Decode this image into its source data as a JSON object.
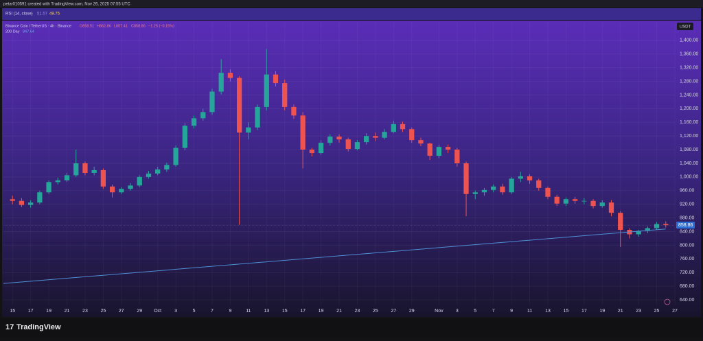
{
  "header": {
    "caption": "petar010591 created with TradingView.com, Nov 26, 2025 07:55 UTC"
  },
  "rsi": {
    "label": "RSI (14, close)",
    "value1": "51.57",
    "value2": "49.75"
  },
  "legend": {
    "symbol": "Binance Coin / TetherUS · 4h · Binance",
    "open": "O858.51",
    "high": "H862.86",
    "low": "L857.41",
    "close": "C858.86",
    "change": "−1.25 (−0.15%)"
  },
  "currency": "USDT",
  "footer": {
    "brand": "TradingView"
  },
  "chart_data": {
    "type": "candlestick",
    "up_color": "#26a69a",
    "down_color": "#ef5350",
    "x": [
      "Sep 15",
      "Sep 16",
      "Sep 17",
      "Sep 18",
      "Sep 19",
      "Sep 20",
      "Sep 21",
      "Sep 22",
      "Sep 23",
      "Sep 24",
      "Sep 25",
      "Sep 26",
      "Sep 27",
      "Sep 28",
      "Sep 29",
      "Sep 30",
      "Oct 1",
      "Oct 2",
      "Oct 3",
      "Oct 4",
      "Oct 5",
      "Oct 6",
      "Oct 7",
      "Oct 8",
      "Oct 9",
      "Oct 10",
      "Oct 11",
      "Oct 12",
      "Oct 13",
      "Oct 14",
      "Oct 15",
      "Oct 16",
      "Oct 17",
      "Oct 18",
      "Oct 19",
      "Oct 20",
      "Oct 21",
      "Oct 22",
      "Oct 23",
      "Oct 24",
      "Oct 25",
      "Oct 26",
      "Oct 27",
      "Oct 28",
      "Oct 29",
      "Oct 30",
      "Oct 31",
      "Nov 1",
      "Nov 2",
      "Nov 3",
      "Nov 4",
      "Nov 5",
      "Nov 6",
      "Nov 7",
      "Nov 8",
      "Nov 9",
      "Nov 10",
      "Nov 11",
      "Nov 12",
      "Nov 13",
      "Nov 14",
      "Nov 15",
      "Nov 16",
      "Nov 17",
      "Nov 18",
      "Nov 19",
      "Nov 20",
      "Nov 21",
      "Nov 22",
      "Nov 23",
      "Nov 24",
      "Nov 25",
      "Nov 26"
    ],
    "open": [
      935,
      930,
      918,
      925,
      955,
      985,
      990,
      1005,
      1040,
      1012,
      1020,
      972,
      955,
      965,
      975,
      1000,
      1010,
      1022,
      1035,
      1085,
      1150,
      1172,
      1190,
      1250,
      1305,
      1290,
      1130,
      1145,
      1205,
      1300,
      1275,
      1205,
      1180,
      1080,
      1070,
      1100,
      1118,
      1110,
      1082,
      1102,
      1120,
      1115,
      1132,
      1155,
      1140,
      1108,
      1098,
      1062,
      1088,
      1080,
      1040,
      950,
      955,
      962,
      972,
      955,
      995,
      1002,
      990,
      968,
      942,
      922,
      935,
      930,
      930,
      915,
      925,
      895,
      845,
      832,
      842,
      850,
      862
    ],
    "high": [
      945,
      938,
      932,
      960,
      990,
      998,
      1012,
      1080,
      1045,
      1030,
      1025,
      978,
      970,
      982,
      1005,
      1018,
      1030,
      1042,
      1092,
      1158,
      1180,
      1200,
      1258,
      1345,
      1315,
      1295,
      1160,
      1212,
      1375,
      1310,
      1285,
      1212,
      1190,
      1085,
      1108,
      1125,
      1125,
      1115,
      1108,
      1128,
      1130,
      1140,
      1165,
      1162,
      1145,
      1115,
      1100,
      1095,
      1095,
      1085,
      1045,
      960,
      968,
      978,
      980,
      1000,
      1015,
      1008,
      995,
      972,
      948,
      940,
      942,
      938,
      935,
      932,
      932,
      900,
      850,
      845,
      855,
      868,
      870
    ],
    "low": [
      920,
      912,
      910,
      920,
      950,
      978,
      985,
      1000,
      1005,
      1005,
      965,
      940,
      950,
      960,
      970,
      995,
      1005,
      1015,
      1030,
      1078,
      1142,
      1165,
      1182,
      1242,
      1280,
      860,
      1110,
      1138,
      1195,
      1265,
      1195,
      1170,
      1025,
      1060,
      1065,
      1092,
      1100,
      1075,
      1078,
      1095,
      1105,
      1110,
      1128,
      1132,
      1100,
      1090,
      1050,
      1055,
      1070,
      1030,
      885,
      935,
      945,
      955,
      948,
      950,
      985,
      980,
      960,
      935,
      915,
      915,
      922,
      920,
      908,
      910,
      885,
      795,
      820,
      825,
      835,
      845,
      852
    ],
    "close": [
      930,
      918,
      925,
      955,
      985,
      990,
      1005,
      1040,
      1012,
      1020,
      972,
      955,
      965,
      975,
      1000,
      1010,
      1022,
      1035,
      1085,
      1150,
      1172,
      1190,
      1250,
      1305,
      1290,
      1130,
      1145,
      1205,
      1300,
      1275,
      1205,
      1180,
      1080,
      1070,
      1100,
      1118,
      1110,
      1082,
      1102,
      1120,
      1115,
      1132,
      1155,
      1140,
      1108,
      1098,
      1062,
      1088,
      1080,
      1040,
      950,
      955,
      962,
      972,
      955,
      995,
      1002,
      990,
      968,
      942,
      922,
      935,
      930,
      930,
      915,
      925,
      895,
      845,
      832,
      842,
      850,
      862,
      858.86
    ],
    "moving_average": {
      "name": "200 Day",
      "color": "#4f8fd6",
      "x": [
        "Sep 14",
        "Nov 26"
      ],
      "values": [
        688,
        847.64
      ]
    },
    "xlim": [
      "Sep 14",
      "Nov 27"
    ],
    "xticks": [
      {
        "value": "Sep 15",
        "label": "15"
      },
      {
        "value": "Sep 17",
        "label": "17"
      },
      {
        "value": "Sep 19",
        "label": "19"
      },
      {
        "value": "Sep 21",
        "label": "21"
      },
      {
        "value": "Sep 23",
        "label": "23"
      },
      {
        "value": "Sep 25",
        "label": "25"
      },
      {
        "value": "Sep 27",
        "label": "27"
      },
      {
        "value": "Sep 29",
        "label": "29"
      },
      {
        "value": "Oct 1",
        "label": "Oct"
      },
      {
        "value": "Oct 3",
        "label": "3"
      },
      {
        "value": "Oct 5",
        "label": "5"
      },
      {
        "value": "Oct 7",
        "label": "7"
      },
      {
        "value": "Oct 9",
        "label": "9"
      },
      {
        "value": "Oct 11",
        "label": "11"
      },
      {
        "value": "Oct 13",
        "label": "13"
      },
      {
        "value": "Oct 15",
        "label": "15"
      },
      {
        "value": "Oct 17",
        "label": "17"
      },
      {
        "value": "Oct 19",
        "label": "19"
      },
      {
        "value": "Oct 21",
        "label": "21"
      },
      {
        "value": "Oct 23",
        "label": "23"
      },
      {
        "value": "Oct 25",
        "label": "25"
      },
      {
        "value": "Oct 27",
        "label": "27"
      },
      {
        "value": "Oct 29",
        "label": "29"
      },
      {
        "value": "Nov 1",
        "label": "Nov"
      },
      {
        "value": "Nov 3",
        "label": "3"
      },
      {
        "value": "Nov 5",
        "label": "5"
      },
      {
        "value": "Nov 7",
        "label": "7"
      },
      {
        "value": "Nov 9",
        "label": "9"
      },
      {
        "value": "Nov 11",
        "label": "11"
      },
      {
        "value": "Nov 13",
        "label": "13"
      },
      {
        "value": "Nov 15",
        "label": "15"
      },
      {
        "value": "Nov 17",
        "label": "17"
      },
      {
        "value": "Nov 19",
        "label": "19"
      },
      {
        "value": "Nov 21",
        "label": "21"
      },
      {
        "value": "Nov 23",
        "label": "23"
      },
      {
        "value": "Nov 25",
        "label": "25"
      },
      {
        "value": "Nov 27",
        "label": "27"
      }
    ],
    "ylim": [
      624,
      1454
    ],
    "yticks": [
      {
        "value": 640,
        "label": "640.00"
      },
      {
        "value": 680,
        "label": "680.00"
      },
      {
        "value": 720,
        "label": "720.00"
      },
      {
        "value": 760,
        "label": "760.00"
      },
      {
        "value": 800,
        "label": "800.00"
      },
      {
        "value": 840,
        "label": "840.00"
      },
      {
        "value": 880,
        "label": "880.00"
      },
      {
        "value": 920,
        "label": "920.00"
      },
      {
        "value": 960,
        "label": "960.00"
      },
      {
        "value": 1000,
        "label": "1,000.00"
      },
      {
        "value": 1040,
        "label": "1,040.00"
      },
      {
        "value": 1080,
        "label": "1,080.00"
      },
      {
        "value": 1120,
        "label": "1,120.00"
      },
      {
        "value": 1160,
        "label": "1,160.00"
      },
      {
        "value": 1200,
        "label": "1,200.00"
      },
      {
        "value": 1240,
        "label": "1,240.00"
      },
      {
        "value": 1280,
        "label": "1,280.00"
      },
      {
        "value": 1320,
        "label": "1,320.00"
      },
      {
        "value": 1360,
        "label": "1,360.00"
      },
      {
        "value": 1400,
        "label": "1,400.00"
      }
    ],
    "grid": true
  }
}
